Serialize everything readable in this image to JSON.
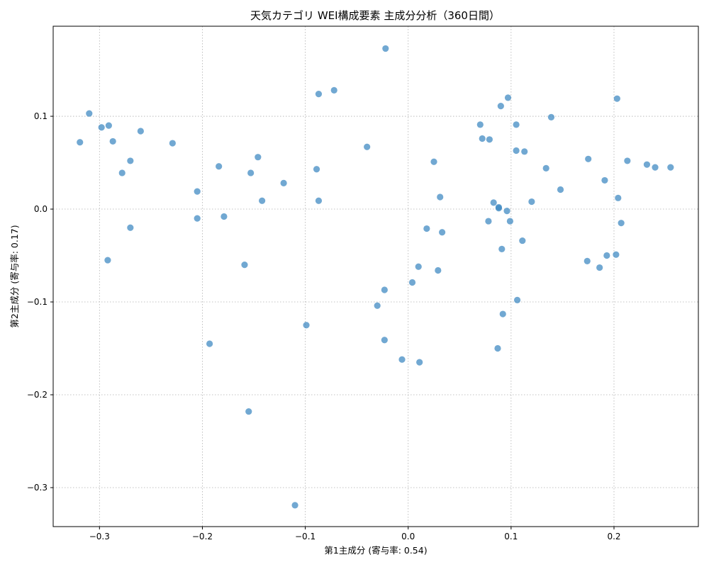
{
  "chart_data": {
    "type": "scatter",
    "title": "天気カテゴリ WEI構成要素 主成分分析（360日間）",
    "xlabel": "第1主成分 (寄与率: 0.54)",
    "ylabel": "第2主成分 (寄与率: 0.17)",
    "xlim": [
      -0.345,
      0.282
    ],
    "ylim": [
      -0.342,
      0.197
    ],
    "xticks": [
      -0.3,
      -0.2,
      -0.1,
      0.0,
      0.1,
      0.2
    ],
    "xtick_labels": [
      "−0.3",
      "−0.2",
      "−0.1",
      "0.0",
      "0.1",
      "0.2"
    ],
    "yticks": [
      -0.3,
      -0.2,
      -0.1,
      0.0,
      0.1
    ],
    "ytick_labels": [
      "−0.3",
      "−0.2",
      "−0.1",
      "0.0",
      "0.1"
    ],
    "grid": true,
    "color": "#3a86c0",
    "series": [
      {
        "x": [
          -0.319,
          -0.31,
          -0.298,
          -0.291,
          -0.287,
          -0.278,
          -0.27,
          -0.26,
          -0.292,
          -0.27,
          -0.229,
          -0.205,
          -0.205,
          -0.184,
          -0.179,
          -0.159,
          -0.153,
          -0.155,
          -0.146,
          -0.142,
          -0.121,
          -0.099,
          -0.11,
          -0.193,
          -0.089,
          -0.087,
          -0.087,
          -0.072,
          -0.04,
          -0.023,
          -0.03,
          -0.023,
          -0.022,
          -0.006,
          0.004,
          0.01,
          0.011,
          0.018,
          0.025,
          0.029,
          0.031,
          0.033,
          0.07,
          0.072,
          0.079,
          0.078,
          0.083,
          0.088,
          0.088,
          0.09,
          0.091,
          0.092,
          0.096,
          0.097,
          0.099,
          0.105,
          0.105,
          0.106,
          0.111,
          0.113,
          0.12,
          0.134,
          0.139,
          0.148,
          0.174,
          0.175,
          0.186,
          0.191,
          0.193,
          0.202,
          0.203,
          0.204,
          0.207,
          0.213,
          0.232,
          0.24,
          0.255,
          0.087
        ],
        "y": [
          0.072,
          0.103,
          0.088,
          0.09,
          0.073,
          0.039,
          0.052,
          0.084,
          -0.055,
          -0.02,
          0.071,
          0.019,
          -0.01,
          0.046,
          -0.008,
          -0.06,
          0.039,
          -0.218,
          0.056,
          0.009,
          0.028,
          -0.125,
          -0.319,
          -0.145,
          0.043,
          0.009,
          0.124,
          0.128,
          0.067,
          -0.087,
          -0.104,
          -0.141,
          0.173,
          -0.162,
          -0.079,
          -0.062,
          -0.165,
          -0.021,
          0.051,
          -0.066,
          0.013,
          -0.025,
          0.091,
          0.076,
          0.075,
          -0.013,
          0.007,
          0.002,
          0.001,
          0.111,
          -0.043,
          -0.113,
          -0.002,
          0.12,
          -0.013,
          0.091,
          0.063,
          -0.098,
          -0.034,
          0.062,
          0.008,
          0.044,
          0.099,
          0.021,
          -0.056,
          0.054,
          -0.063,
          0.031,
          -0.05,
          -0.049,
          0.119,
          0.012,
          -0.015,
          0.052,
          0.048,
          0.045,
          0.045,
          -0.15
        ]
      }
    ]
  }
}
